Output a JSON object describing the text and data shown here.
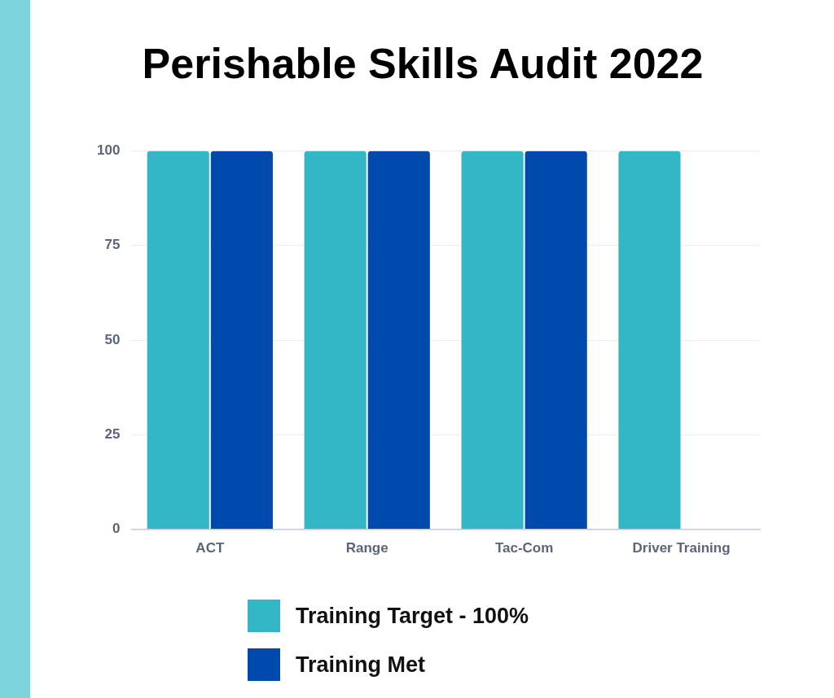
{
  "chart_data": {
    "type": "bar",
    "title": "Perishable Skills Audit 2022",
    "categories": [
      "ACT",
      "Range",
      "Tac-Com",
      "Driver Training"
    ],
    "series": [
      {
        "name": "Training Target - 100%",
        "color": "#33b6c5",
        "values": [
          100,
          100,
          100,
          100
        ]
      },
      {
        "name": "Training Met",
        "color": "#004aad",
        "values": [
          100,
          100,
          100,
          0
        ]
      }
    ],
    "ylim": [
      0,
      100
    ],
    "yticks": [
      0,
      25,
      50,
      75,
      100
    ],
    "grid": "y",
    "legend": "bottom"
  }
}
